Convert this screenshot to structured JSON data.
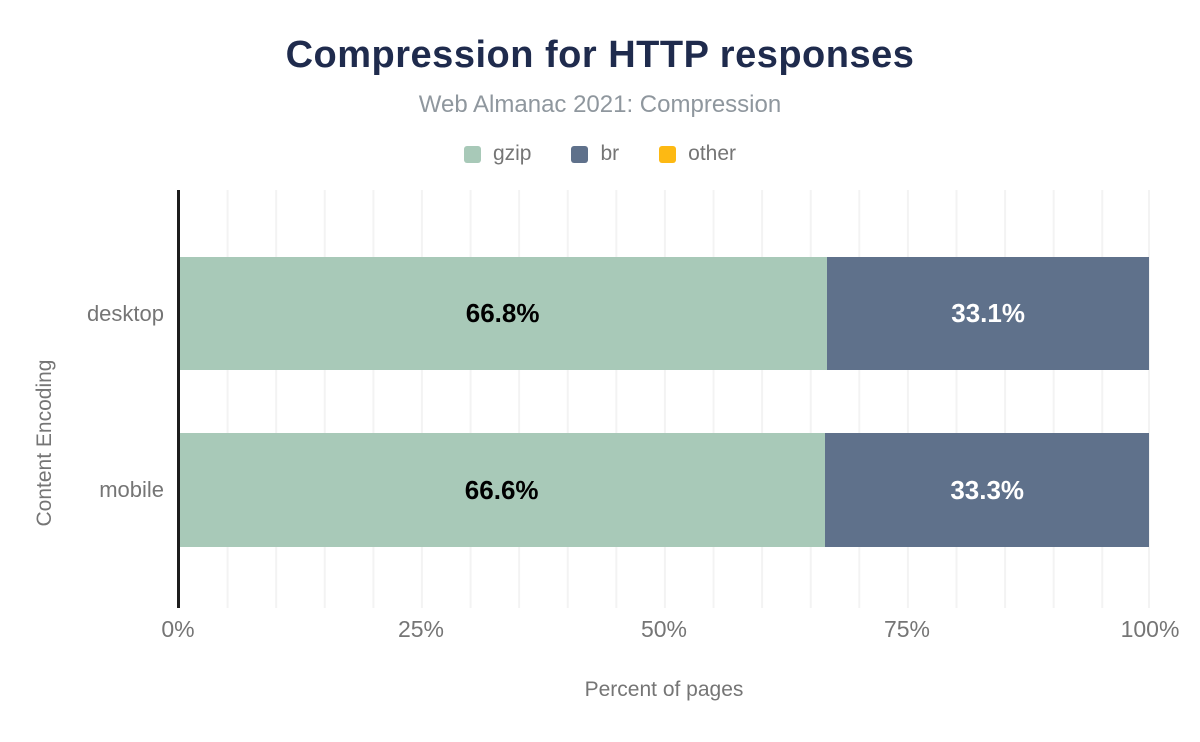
{
  "chart_data": {
    "type": "bar",
    "orientation": "horizontal",
    "stacked": true,
    "title": "Compression for HTTP responses",
    "subtitle": "Web Almanac 2021: Compression",
    "categories": [
      "desktop",
      "mobile"
    ],
    "series": [
      {
        "name": "gzip",
        "color": "#a8c9b8",
        "label_color": "#000000",
        "values": [
          66.8,
          66.6
        ],
        "labels": [
          "66.8%",
          "66.6%"
        ]
      },
      {
        "name": "br",
        "color": "#5f718b",
        "label_color": "#ffffff",
        "values": [
          33.1,
          33.3
        ],
        "labels": [
          "33.1%",
          "33.3%"
        ]
      },
      {
        "name": "other",
        "color": "#fdb913",
        "label_color": "#000000",
        "values": [
          0,
          0
        ],
        "labels": [
          "",
          ""
        ]
      }
    ],
    "xlabel": "Percent of pages",
    "ylabel": "Content Encoding",
    "x_ticks": [
      "0%",
      "25%",
      "50%",
      "75%",
      "100%"
    ],
    "xlim": [
      0,
      100
    ],
    "grid": {
      "vertical_gridline_every_percent": 5,
      "color": "#f3f3f3"
    },
    "legend_position": "top",
    "colors": {
      "title": "#1f2b4d",
      "subtitle": "#8f979e",
      "axis_text": "#757575",
      "axis_line": "#1d1d1d",
      "background": "#ffffff"
    }
  }
}
